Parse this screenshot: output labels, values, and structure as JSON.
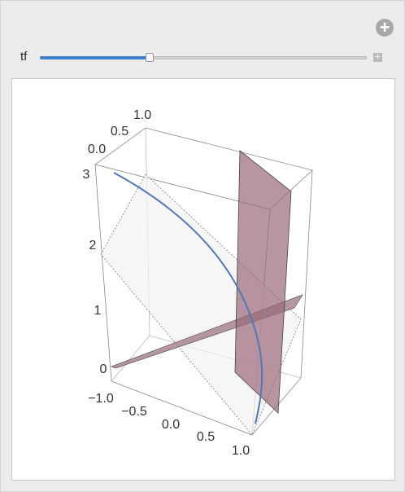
{
  "control": {
    "label": "tf"
  },
  "plot": {
    "axis_top": [
      "1.0",
      "0.5",
      "0.0"
    ],
    "axis_vertical": [
      "3",
      "2",
      "1",
      "0"
    ],
    "axis_bottom": [
      "−1.0",
      "−0.5",
      "0.0",
      "0.5",
      "1.0"
    ]
  }
}
